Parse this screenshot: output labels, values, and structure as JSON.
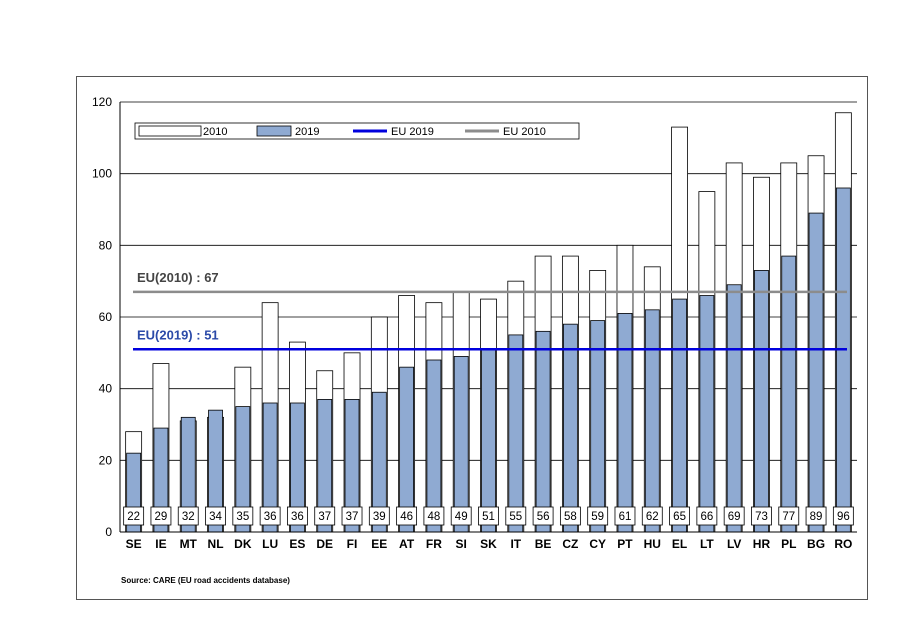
{
  "chart_data": {
    "type": "bar",
    "title": "",
    "xlabel": "",
    "ylabel": "",
    "ylim": [
      0,
      120
    ],
    "yticks": [
      0,
      20,
      40,
      60,
      80,
      100,
      120
    ],
    "grid": true,
    "legend_position": "top-left",
    "categories": [
      "SE",
      "IE",
      "MT",
      "NL",
      "DK",
      "LU",
      "ES",
      "DE",
      "FI",
      "EE",
      "AT",
      "FR",
      "SI",
      "SK",
      "IT",
      "BE",
      "CZ",
      "CY",
      "PT",
      "HU",
      "EL",
      "LT",
      "LV",
      "HR",
      "PL",
      "BG",
      "RO"
    ],
    "series": [
      {
        "name": "2010",
        "style": "outline",
        "color": "#ffffff",
        "values": [
          28,
          47,
          31,
          32,
          46,
          64,
          53,
          45,
          50,
          60,
          66,
          64,
          67,
          65,
          70,
          77,
          77,
          73,
          80,
          74,
          113,
          95,
          103,
          99,
          103,
          105,
          117
        ]
      },
      {
        "name": "2019",
        "style": "filled",
        "color": "#8faad2",
        "values": [
          22,
          29,
          32,
          34,
          35,
          36,
          36,
          37,
          37,
          39,
          46,
          48,
          49,
          51,
          55,
          56,
          58,
          59,
          61,
          62,
          65,
          66,
          69,
          73,
          77,
          89,
          96
        ]
      }
    ],
    "data_labels": [
      "22",
      "29",
      "32",
      "34",
      "35",
      "36",
      "36",
      "37",
      "37",
      "39",
      "46",
      "48",
      "49",
      "51",
      "55",
      "56",
      "58",
      "59",
      "61",
      "62",
      "65",
      "66",
      "69",
      "73",
      "77",
      "89",
      "96"
    ],
    "reference_lines": [
      {
        "name": "EU 2019",
        "value": 51,
        "color": "#0000dd",
        "label": "EU(2019) : 51"
      },
      {
        "name": "EU 2010",
        "value": 67,
        "color": "#8c8c8c",
        "label": "EU(2010) : 67"
      }
    ],
    "source": "Source: CARE  (EU  road accidents database)"
  }
}
